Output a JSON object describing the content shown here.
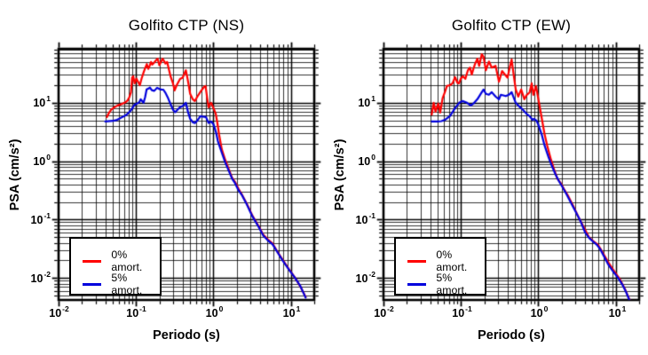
{
  "figure": {
    "background": "#ffffff",
    "axis_base": "10",
    "xlabel": "Periodo (s)",
    "ylabel": "PSA (cm/s²)",
    "x_tick_exponents": [
      "-2",
      "-1",
      "0",
      "1"
    ],
    "y_tick_exponents": [
      "1",
      "0",
      "-1",
      "-2"
    ],
    "grid_color": "#000000",
    "legend": [
      {
        "label": "0% amort.",
        "color": "#ff0000"
      },
      {
        "label": "5% amort.",
        "color": "#0000dd"
      }
    ]
  },
  "chart_data": [
    {
      "type": "line",
      "title": "Golfito CTP (NS)",
      "xlabel": "Periodo (s)",
      "ylabel": "PSA (cm/s²)",
      "xscale": "log",
      "yscale": "log",
      "xlim": [
        0.01,
        20
      ],
      "ylim": [
        0.0042,
        84
      ],
      "grid": "major+minor log grid, black",
      "legend_position": "lower-left",
      "series": [
        {
          "name": "0% amort.",
          "color": "#ff0000",
          "points": [
            [
              0.042,
              5.7
            ],
            [
              0.045,
              6.8
            ],
            [
              0.048,
              7.7
            ],
            [
              0.052,
              8.3
            ],
            [
              0.057,
              8.9
            ],
            [
              0.062,
              9.3
            ],
            [
              0.068,
              9.8
            ],
            [
              0.073,
              10.2
            ],
            [
              0.078,
              11
            ],
            [
              0.082,
              12.5
            ],
            [
              0.086,
              15
            ],
            [
              0.089,
              27
            ],
            [
              0.092,
              28.5
            ],
            [
              0.096,
              21.5
            ],
            [
              0.101,
              26
            ],
            [
              0.106,
              23
            ],
            [
              0.112,
              20
            ],
            [
              0.118,
              26
            ],
            [
              0.126,
              34
            ],
            [
              0.132,
              40
            ],
            [
              0.138,
              46
            ],
            [
              0.144,
              38
            ],
            [
              0.15,
              43
            ],
            [
              0.156,
              50
            ],
            [
              0.162,
              45
            ],
            [
              0.17,
              48
            ],
            [
              0.18,
              53
            ],
            [
              0.19,
              57
            ],
            [
              0.2,
              44
            ],
            [
              0.21,
              50
            ],
            [
              0.22,
              57
            ],
            [
              0.23,
              52
            ],
            [
              0.24,
              47
            ],
            [
              0.252,
              50
            ],
            [
              0.265,
              38
            ],
            [
              0.28,
              28
            ],
            [
              0.3,
              21.5
            ],
            [
              0.315,
              16.3
            ],
            [
              0.335,
              20
            ],
            [
              0.37,
              25.6
            ],
            [
              0.4,
              27
            ],
            [
              0.44,
              36
            ],
            [
              0.465,
              25
            ],
            [
              0.5,
              14.2
            ],
            [
              0.54,
              11.5
            ],
            [
              0.575,
              10.7
            ],
            [
              0.62,
              12.8
            ],
            [
              0.68,
              15.5
            ],
            [
              0.75,
              18.5
            ],
            [
              0.79,
              19.4
            ],
            [
              0.83,
              12
            ],
            [
              0.865,
              8.4
            ],
            [
              0.9,
              9.4
            ],
            [
              0.935,
              10
            ],
            [
              1.0,
              8.1
            ],
            [
              1.07,
              6.5
            ],
            [
              1.12,
              4.6
            ],
            [
              1.18,
              2.9
            ],
            [
              1.28,
              1.6
            ],
            [
              1.42,
              1.05
            ],
            [
              1.58,
              0.72
            ],
            [
              1.74,
              0.52
            ],
            [
              1.9,
              0.44
            ],
            [
              2.1,
              0.34
            ],
            [
              2.32,
              0.27
            ],
            [
              2.7,
              0.185
            ],
            [
              3.2,
              0.115
            ],
            [
              3.85,
              0.076
            ],
            [
              4.4,
              0.055
            ],
            [
              5.0,
              0.046
            ],
            [
              5.8,
              0.039
            ],
            [
              6.6,
              0.029
            ],
            [
              7.8,
              0.0205
            ],
            [
              9.4,
              0.0142
            ],
            [
              11.2,
              0.0103
            ],
            [
              13.2,
              0.0072
            ],
            [
              15.5,
              0.0047
            ]
          ]
        },
        {
          "name": "5% amort.",
          "color": "#0000dd",
          "points": [
            [
              0.04,
              4.8
            ],
            [
              0.05,
              4.9
            ],
            [
              0.057,
              5.1
            ],
            [
              0.065,
              5.6
            ],
            [
              0.075,
              6.2
            ],
            [
              0.085,
              7.3
            ],
            [
              0.096,
              9.3
            ],
            [
              0.104,
              9.8
            ],
            [
              0.11,
              10.2
            ],
            [
              0.115,
              11.5
            ],
            [
              0.125,
              10
            ],
            [
              0.131,
              12.5
            ],
            [
              0.137,
              16.9
            ],
            [
              0.145,
              17.5
            ],
            [
              0.151,
              18.3
            ],
            [
              0.16,
              16.4
            ],
            [
              0.172,
              16
            ],
            [
              0.187,
              18.1
            ],
            [
              0.2,
              17.2
            ],
            [
              0.212,
              16.9
            ],
            [
              0.225,
              16.8
            ],
            [
              0.24,
              14.8
            ],
            [
              0.26,
              11.9
            ],
            [
              0.28,
              9.4
            ],
            [
              0.3,
              7.6
            ],
            [
              0.32,
              6.9
            ],
            [
              0.34,
              7.5
            ],
            [
              0.37,
              8.4
            ],
            [
              0.4,
              8.8
            ],
            [
              0.44,
              10
            ],
            [
              0.47,
              6.9
            ],
            [
              0.5,
              5.3
            ],
            [
              0.545,
              4.6
            ],
            [
              0.575,
              4.5
            ],
            [
              0.62,
              5.0
            ],
            [
              0.68,
              5.9
            ],
            [
              0.73,
              5.8
            ],
            [
              0.8,
              5.7
            ],
            [
              0.865,
              4.5
            ],
            [
              0.93,
              4.8
            ],
            [
              1.0,
              4.3
            ],
            [
              1.08,
              3.1
            ],
            [
              1.14,
              2.2
            ],
            [
              1.28,
              1.4
            ],
            [
              1.42,
              0.95
            ],
            [
              1.58,
              0.68
            ],
            [
              1.74,
              0.5
            ],
            [
              1.9,
              0.42
            ],
            [
              2.1,
              0.32
            ],
            [
              2.32,
              0.265
            ],
            [
              2.7,
              0.18
            ],
            [
              3.2,
              0.112
            ],
            [
              3.85,
              0.074
            ],
            [
              4.4,
              0.053
            ],
            [
              5.0,
              0.0445
            ],
            [
              5.8,
              0.0375
            ],
            [
              6.6,
              0.0285
            ],
            [
              7.8,
              0.02
            ],
            [
              9.4,
              0.014
            ],
            [
              11.2,
              0.0102
            ],
            [
              13.2,
              0.0073
            ],
            [
              15.5,
              0.0046
            ]
          ]
        }
      ]
    },
    {
      "type": "line",
      "title": "Golfito CTP (EW)",
      "xlabel": "Periodo (s)",
      "ylabel": "PSA (cm/s²)",
      "xscale": "log",
      "yscale": "log",
      "xlim": [
        0.01,
        20
      ],
      "ylim": [
        0.0042,
        84
      ],
      "grid": "major+minor log grid, black",
      "legend_position": "lower-left",
      "series": [
        {
          "name": "0% amort.",
          "color": "#ff0000",
          "points": [
            [
              0.042,
              6.3
            ],
            [
              0.0445,
              10
            ],
            [
              0.047,
              7
            ],
            [
              0.051,
              9.7
            ],
            [
              0.054,
              6.8
            ],
            [
              0.058,
              12
            ],
            [
              0.062,
              15.2
            ],
            [
              0.066,
              19.4
            ],
            [
              0.072,
              20
            ],
            [
              0.078,
              21.5
            ],
            [
              0.084,
              27.5
            ],
            [
              0.09,
              22
            ],
            [
              0.094,
              21.5
            ],
            [
              0.1,
              26
            ],
            [
              0.106,
              28.5
            ],
            [
              0.114,
              25.7
            ],
            [
              0.123,
              36
            ],
            [
              0.131,
              40
            ],
            [
              0.138,
              30.5
            ],
            [
              0.145,
              38
            ],
            [
              0.152,
              46
            ],
            [
              0.163,
              57
            ],
            [
              0.172,
              43
            ],
            [
              0.186,
              68
            ],
            [
              0.196,
              61
            ],
            [
              0.21,
              36
            ],
            [
              0.23,
              51
            ],
            [
              0.25,
              40
            ],
            [
              0.28,
              43
            ],
            [
              0.31,
              23
            ],
            [
              0.34,
              35
            ],
            [
              0.37,
              30.5
            ],
            [
              0.4,
              27
            ],
            [
              0.43,
              42
            ],
            [
              0.452,
              55
            ],
            [
              0.48,
              30
            ],
            [
              0.51,
              17
            ],
            [
              0.55,
              12.8
            ],
            [
              0.6,
              16.9
            ],
            [
              0.66,
              11.5
            ],
            [
              0.71,
              13.7
            ],
            [
              0.77,
              15
            ],
            [
              0.82,
              21.5
            ],
            [
              0.862,
              13.7
            ],
            [
              0.93,
              19.4
            ],
            [
              1.0,
              11.5
            ],
            [
              1.11,
              5.3
            ],
            [
              1.2,
              2.95
            ],
            [
              1.3,
              1.85
            ],
            [
              1.45,
              1.08
            ],
            [
              1.6,
              0.72
            ],
            [
              1.76,
              0.5
            ],
            [
              1.95,
              0.42
            ],
            [
              2.15,
              0.33
            ],
            [
              2.4,
              0.26
            ],
            [
              2.8,
              0.175
            ],
            [
              3.3,
              0.11
            ],
            [
              3.9,
              0.072
            ],
            [
              4.5,
              0.05
            ],
            [
              5.1,
              0.043
            ],
            [
              5.9,
              0.037
            ],
            [
              6.7,
              0.028
            ],
            [
              7.9,
              0.019
            ],
            [
              9.5,
              0.0132
            ],
            [
              11.3,
              0.0095
            ],
            [
              13.3,
              0.0062
            ],
            [
              15.2,
              0.0041
            ]
          ]
        },
        {
          "name": "5% amort.",
          "color": "#0000dd",
          "points": [
            [
              0.042,
              4.8
            ],
            [
              0.05,
              4.8
            ],
            [
              0.056,
              4.85
            ],
            [
              0.062,
              5.1
            ],
            [
              0.072,
              5.9
            ],
            [
              0.084,
              8.1
            ],
            [
              0.095,
              10
            ],
            [
              0.105,
              10.7
            ],
            [
              0.12,
              10
            ],
            [
              0.134,
              9.0
            ],
            [
              0.145,
              9.7
            ],
            [
              0.163,
              11.5
            ],
            [
              0.186,
              15.2
            ],
            [
              0.196,
              16.9
            ],
            [
              0.21,
              14.2
            ],
            [
              0.23,
              13.7
            ],
            [
              0.25,
              15.2
            ],
            [
              0.28,
              12.8
            ],
            [
              0.31,
              11.5
            ],
            [
              0.327,
              13.7
            ],
            [
              0.345,
              13.5
            ],
            [
              0.38,
              13
            ],
            [
              0.42,
              13.8
            ],
            [
              0.452,
              15.2
            ],
            [
              0.51,
              10
            ],
            [
              0.55,
              9
            ],
            [
              0.6,
              8.1
            ],
            [
              0.66,
              7.1
            ],
            [
              0.71,
              6.4
            ],
            [
              0.77,
              5.9
            ],
            [
              0.84,
              5.1
            ],
            [
              0.88,
              5.3
            ],
            [
              0.95,
              4.9
            ],
            [
              1.0,
              4.2
            ],
            [
              1.11,
              2.8
            ],
            [
              1.2,
              1.87
            ],
            [
              1.35,
              1.18
            ],
            [
              1.5,
              0.82
            ],
            [
              1.66,
              0.6
            ],
            [
              1.82,
              0.47
            ],
            [
              2.0,
              0.38
            ],
            [
              2.25,
              0.29
            ],
            [
              2.6,
              0.2
            ],
            [
              3.0,
              0.14
            ],
            [
              3.5,
              0.094
            ],
            [
              4.0,
              0.061
            ],
            [
              4.55,
              0.048
            ],
            [
              5.1,
              0.042
            ],
            [
              5.7,
              0.037
            ],
            [
              6.3,
              0.031
            ],
            [
              7.1,
              0.023
            ],
            [
              8.1,
              0.0165
            ],
            [
              9.2,
              0.013
            ],
            [
              10.6,
              0.0102
            ],
            [
              12.1,
              0.0078
            ],
            [
              13.6,
              0.0057
            ],
            [
              15.2,
              0.004
            ]
          ]
        }
      ]
    }
  ]
}
